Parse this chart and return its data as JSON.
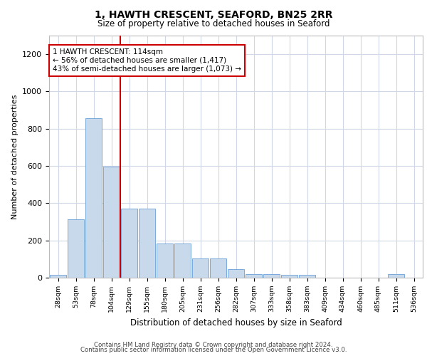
{
  "title1": "1, HAWTH CRESCENT, SEAFORD, BN25 2RR",
  "title2": "Size of property relative to detached houses in Seaford",
  "xlabel": "Distribution of detached houses by size in Seaford",
  "ylabel": "Number of detached properties",
  "categories": [
    "28sqm",
    "53sqm",
    "78sqm",
    "104sqm",
    "129sqm",
    "155sqm",
    "180sqm",
    "205sqm",
    "231sqm",
    "256sqm",
    "282sqm",
    "307sqm",
    "333sqm",
    "358sqm",
    "383sqm",
    "409sqm",
    "434sqm",
    "460sqm",
    "485sqm",
    "511sqm",
    "536sqm"
  ],
  "values": [
    15,
    315,
    855,
    595,
    370,
    370,
    185,
    185,
    105,
    105,
    45,
    20,
    18,
    15,
    15,
    0,
    0,
    0,
    0,
    18,
    0
  ],
  "bar_color": "#c9d9ec",
  "bar_edge_color": "#6a9fd8",
  "red_line_index": 3,
  "annotation_text": "1 HAWTH CRESCENT: 114sqm\n← 56% of detached houses are smaller (1,417)\n43% of semi-detached houses are larger (1,073) →",
  "annotation_box_color": "#ffffff",
  "annotation_box_edge": "#cc0000",
  "ylim": [
    0,
    1300
  ],
  "yticks": [
    0,
    200,
    400,
    600,
    800,
    1000,
    1200
  ],
  "footer1": "Contains HM Land Registry data © Crown copyright and database right 2024.",
  "footer2": "Contains public sector information licensed under the Open Government Licence v3.0.",
  "background_color": "#ffffff",
  "grid_color": "#d0d8e8"
}
